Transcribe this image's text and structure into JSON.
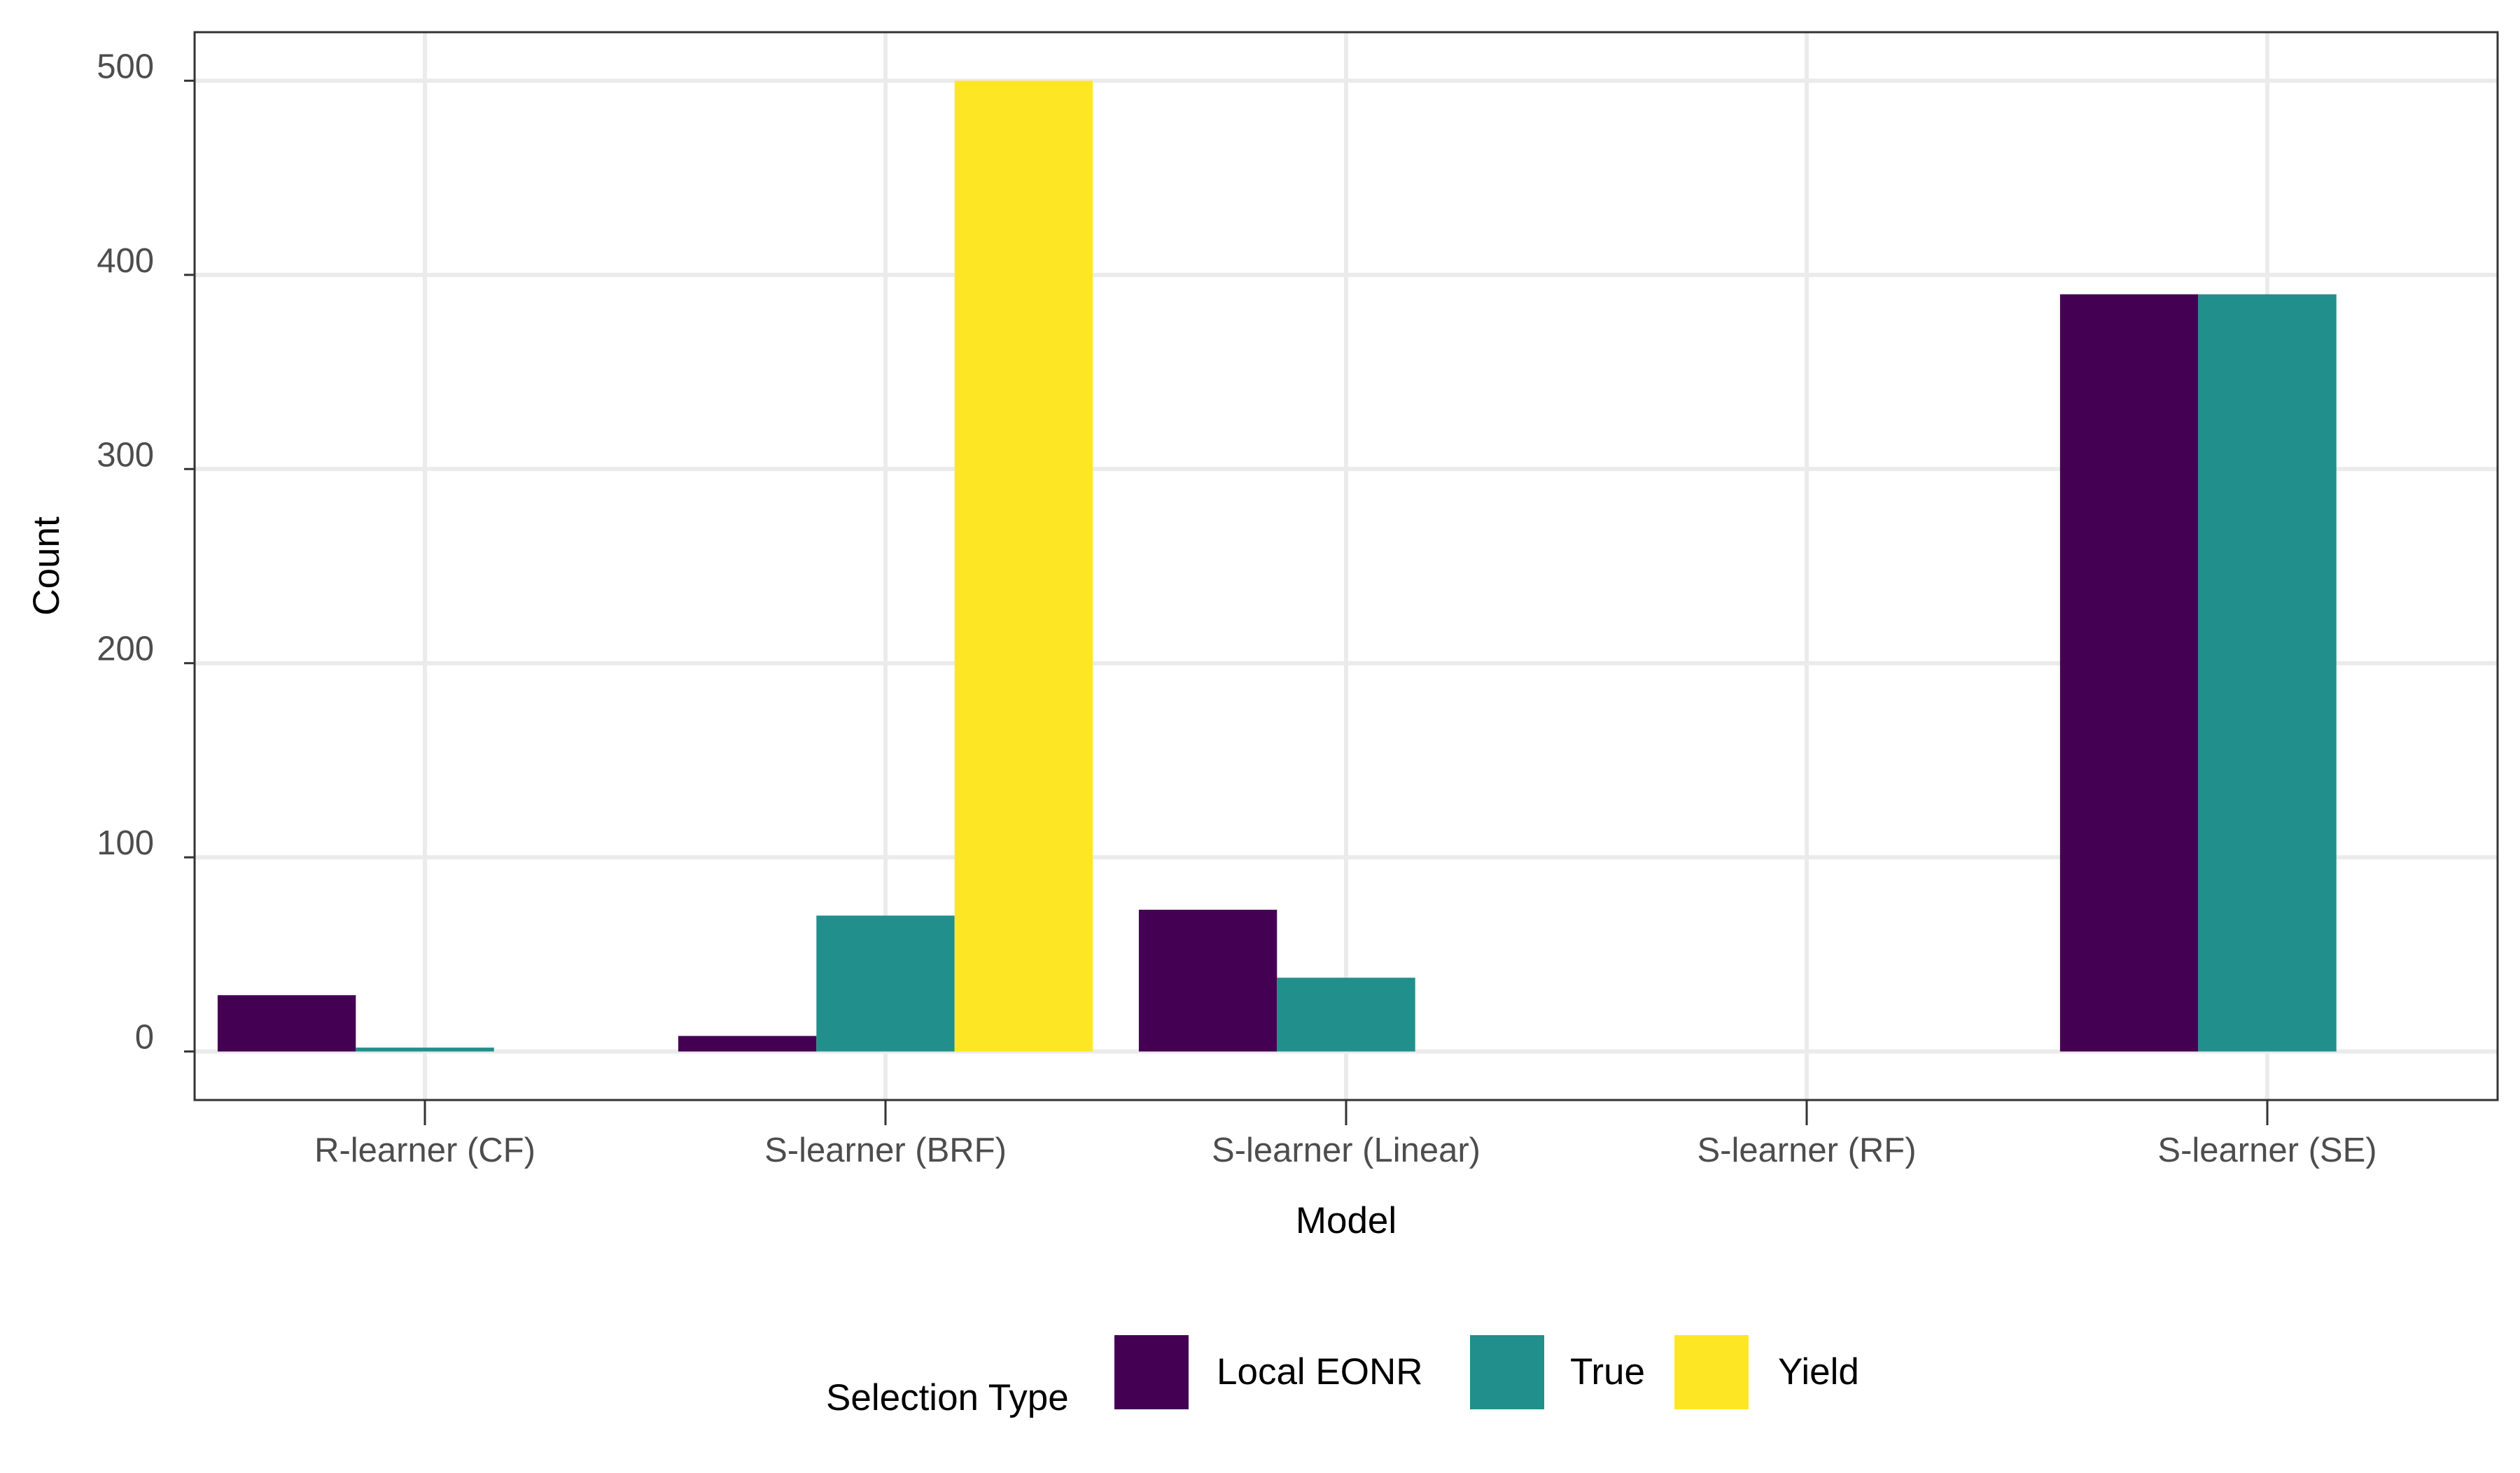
{
  "chart_data": {
    "type": "bar",
    "xlabel": "Model",
    "ylabel": "Count",
    "ylim": [
      -25,
      525
    ],
    "yticks": [
      0,
      100,
      200,
      300,
      400,
      500
    ],
    "grid": true,
    "legend_position": "bottom",
    "legend_title": "Selection Type",
    "categories": [
      "R-learner (CF)",
      "S-learner (BRF)",
      "S-learner (Linear)",
      "S-learner (RF)",
      "S-learner (SE)"
    ],
    "series": [
      {
        "name": "Local EONR",
        "color": "#440154",
        "values": [
          29,
          8,
          73,
          0,
          390
        ]
      },
      {
        "name": "True",
        "color": "#21908C",
        "values": [
          2,
          70,
          38,
          0,
          390
        ]
      },
      {
        "name": "Yield",
        "color": "#FDE725",
        "values": [
          0,
          500,
          0,
          0,
          0
        ]
      }
    ]
  }
}
